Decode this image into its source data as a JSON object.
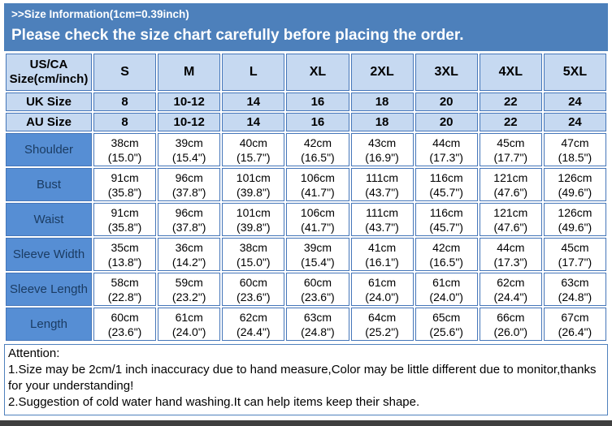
{
  "banner": {
    "line1": ">>Size Information(1cm=0.39inch)",
    "line2": "Please check the size chart carefully before placing the order."
  },
  "table": {
    "corner_label": "US/CA Size(cm/inch)",
    "size_headers": [
      "S",
      "M",
      "L",
      "XL",
      "2XL",
      "3XL",
      "4XL",
      "5XL"
    ],
    "uk_row": {
      "label": "UK Size",
      "values": [
        "8",
        "10-12",
        "14",
        "16",
        "18",
        "20",
        "22",
        "24"
      ]
    },
    "au_row": {
      "label": "AU Size",
      "values": [
        "8",
        "10-12",
        "14",
        "16",
        "18",
        "20",
        "22",
        "24"
      ]
    },
    "measurements": [
      {
        "label": "Shoulder",
        "cm": [
          "38cm",
          "39cm",
          "40cm",
          "42cm",
          "43cm",
          "44cm",
          "45cm",
          "47cm"
        ],
        "inch": [
          "(15.0\")",
          "(15.4\")",
          "(15.7\")",
          "(16.5\")",
          "(16.9\")",
          "(17.3\")",
          "(17.7\")",
          "(18.5\")"
        ]
      },
      {
        "label": "Bust",
        "cm": [
          "91cm",
          "96cm",
          "101cm",
          "106cm",
          "111cm",
          "116cm",
          "121cm",
          "126cm"
        ],
        "inch": [
          "(35.8\")",
          "(37.8\")",
          "(39.8\")",
          "(41.7\")",
          "(43.7\")",
          "(45.7\")",
          "(47.6\")",
          "(49.6\")"
        ]
      },
      {
        "label": "Waist",
        "cm": [
          "91cm",
          "96cm",
          "101cm",
          "106cm",
          "111cm",
          "116cm",
          "121cm",
          "126cm"
        ],
        "inch": [
          "(35.8\")",
          "(37.8\")",
          "(39.8\")",
          "(41.7\")",
          "(43.7\")",
          "(45.7\")",
          "(47.6\")",
          "(49.6\")"
        ]
      },
      {
        "label": "Sleeve Width",
        "cm": [
          "35cm",
          "36cm",
          "38cm",
          "39cm",
          "41cm",
          "42cm",
          "44cm",
          "45cm"
        ],
        "inch": [
          "(13.8\")",
          "(14.2\")",
          "(15.0\")",
          "(15.4\")",
          "(16.1\")",
          "(16.5\")",
          "(17.3\")",
          "(17.7\")"
        ]
      },
      {
        "label": "Sleeve Length",
        "cm": [
          "58cm",
          "59cm",
          "60cm",
          "60cm",
          "61cm",
          "61cm",
          "62cm",
          "63cm"
        ],
        "inch": [
          "(22.8\")",
          "(23.2\")",
          "(23.6\")",
          "(23.6\")",
          "(24.0\")",
          "(24.0\")",
          "(24.4\")",
          "(24.8\")"
        ]
      },
      {
        "label": "Length",
        "cm": [
          "60cm",
          "61cm",
          "62cm",
          "63cm",
          "64cm",
          "65cm",
          "66cm",
          "67cm"
        ],
        "inch": [
          "(23.6\")",
          "(24.0\")",
          "(24.4\")",
          "(24.8\")",
          "(25.2\")",
          "(25.6\")",
          "(26.0\")",
          "(26.4\")"
        ]
      }
    ]
  },
  "attention": {
    "title": "Attention:",
    "note1": "1.Size may be 2cm/1 inch inaccuracy due to hand measure,Color may be little different due to monitor,thanks for your understanding!",
    "note2": "2.Suggestion of cold water hand washing.It can help items keep their shape."
  },
  "colors": {
    "banner_blue": "#4d80bb",
    "header_cell_light_blue": "#c6d9f1",
    "measurement_label_blue": "#568ed4",
    "border_blue": "#4576b9",
    "bottom_strip_gray": "#3f3f3f"
  }
}
